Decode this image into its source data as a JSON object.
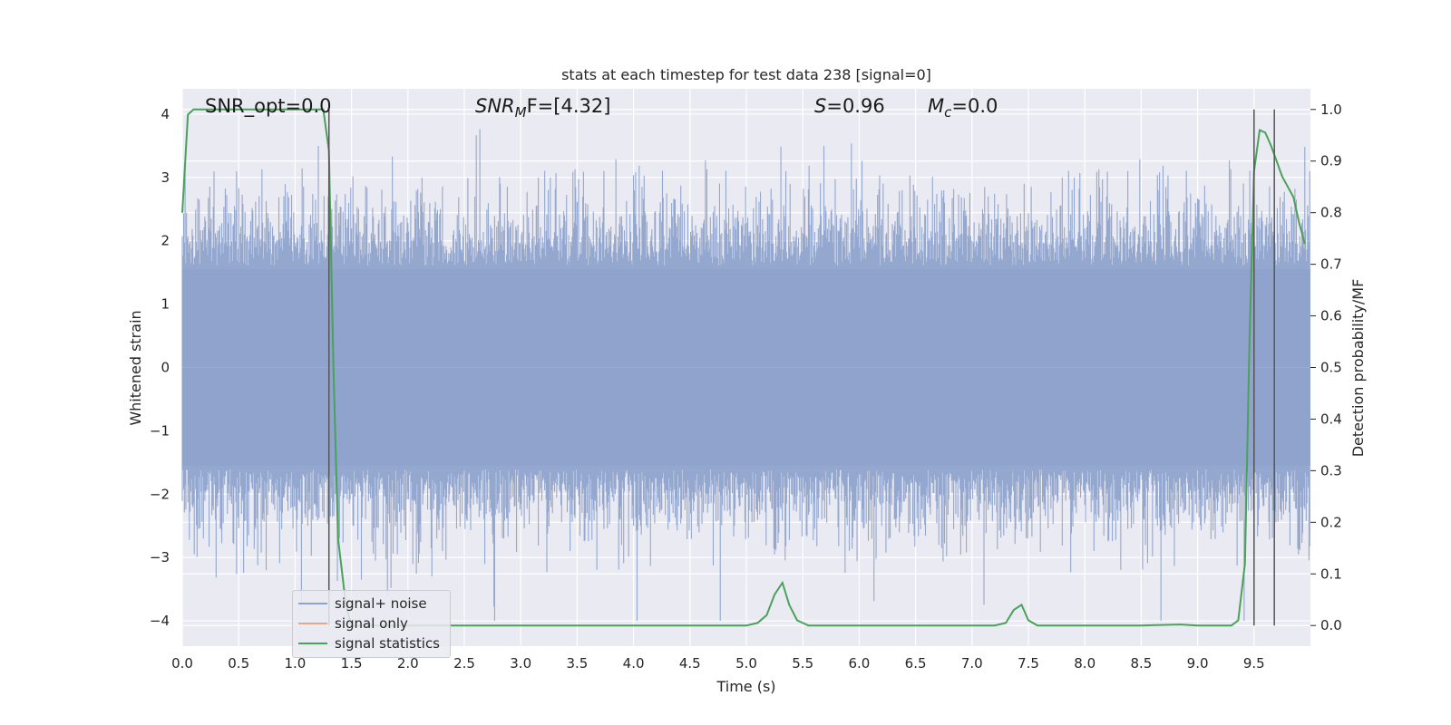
{
  "chart_data": {
    "type": "line",
    "title": "stats at each timestep for test data 238 [signal=0]",
    "xlabel": "Time (s)",
    "ylabel_left": "Whitened strain",
    "ylabel_right": "Detection probability/MF",
    "xlim": [
      0,
      10
    ],
    "ylim_left": [
      -4.4,
      4.4
    ],
    "ylim_right": [
      -0.04,
      1.04
    ],
    "x_ticks": [
      "0.0",
      "0.5",
      "1.0",
      "1.5",
      "2.0",
      "2.5",
      "3.0",
      "3.5",
      "4.0",
      "4.5",
      "5.0",
      "5.5",
      "6.0",
      "6.5",
      "7.0",
      "7.5",
      "8.0",
      "8.5",
      "9.0",
      "9.5"
    ],
    "y_left_ticks": [
      "4",
      "3",
      "2",
      "1",
      "0",
      "−1",
      "−2",
      "−3",
      "−4"
    ],
    "y_right_ticks": [
      "1.0",
      "0.9",
      "0.8",
      "0.7",
      "0.6",
      "0.5",
      "0.4",
      "0.3",
      "0.2",
      "0.1",
      "0.0"
    ],
    "grid": true,
    "legend_position": "lower-left",
    "annotations": {
      "snr_opt": "SNR_opt=0.0",
      "snr_mf_sym": "SNR",
      "snr_mf_sub": "M",
      "snr_mf_rest": "F=[4.32]",
      "s_sym": "S",
      "s_rest": "=0.96",
      "mc_sym": "M",
      "mc_sub": "c",
      "mc_rest": "=0.0"
    },
    "vertical_lines_x": [
      1.3,
      9.5,
      9.68
    ],
    "series": [
      {
        "name": "signal+ noise",
        "color": "#8fa3cc",
        "kind": "noise",
        "envelope_typical": 2.3,
        "envelope_max": 4.0
      },
      {
        "name": "signal only",
        "color": "#e8a58c",
        "kind": "line",
        "x": [
          0,
          10
        ],
        "y": [
          0,
          0
        ]
      },
      {
        "name": "signal statistics",
        "color": "#4aa15a",
        "kind": "line",
        "axis": "right",
        "x": [
          0,
          0.05,
          0.1,
          0.2,
          0.4,
          0.6,
          0.8,
          1.0,
          1.15,
          1.25,
          1.3,
          1.34,
          1.38,
          1.45,
          1.5,
          1.6,
          2.0,
          3.0,
          4.0,
          4.8,
          5.0,
          5.1,
          5.18,
          5.25,
          5.32,
          5.38,
          5.45,
          5.55,
          5.7,
          6.0,
          7.0,
          7.2,
          7.3,
          7.37,
          7.44,
          7.5,
          7.58,
          7.7,
          8.0,
          8.5,
          8.85,
          9.0,
          9.2,
          9.3,
          9.36,
          9.42,
          9.46,
          9.5,
          9.55,
          9.6,
          9.65,
          9.7,
          9.75,
          9.8,
          9.85,
          9.9,
          9.95
        ],
        "y": [
          0.8,
          0.99,
          1.0,
          1.0,
          1.0,
          1.0,
          1.0,
          1.0,
          1.0,
          1.0,
          0.92,
          0.5,
          0.17,
          0.04,
          0.0,
          0.0,
          0.0,
          0.0,
          0.0,
          0.0,
          0.0,
          0.005,
          0.02,
          0.06,
          0.083,
          0.04,
          0.01,
          0.0,
          0.0,
          0.0,
          0.0,
          0.0,
          0.005,
          0.03,
          0.04,
          0.01,
          0.0,
          0.0,
          0.0,
          0.0,
          0.002,
          0.0,
          0.0,
          0.0,
          0.01,
          0.12,
          0.55,
          0.88,
          0.96,
          0.955,
          0.93,
          0.9,
          0.87,
          0.85,
          0.83,
          0.78,
          0.74
        ]
      }
    ]
  }
}
